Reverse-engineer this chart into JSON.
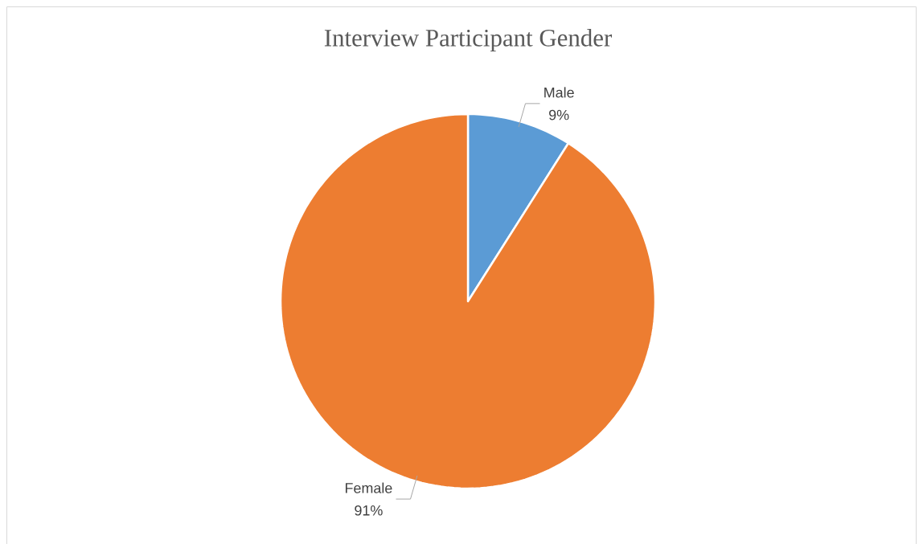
{
  "chart_data": {
    "type": "pie",
    "title": "Interview Participant Gender",
    "categories": [
      "Male",
      "Female"
    ],
    "values": [
      9,
      91
    ],
    "colors": [
      "#5b9bd5",
      "#ed7d31"
    ],
    "value_labels": [
      "9%",
      "91%"
    ]
  }
}
